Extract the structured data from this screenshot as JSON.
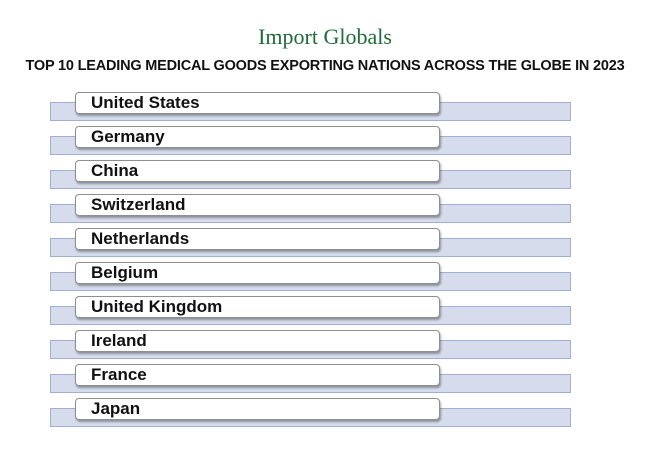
{
  "header": {
    "logo": "Import Globals",
    "title": "TOP 10 LEADING MEDICAL GOODS EXPORTING NATIONS ACROSS THE GLOBE IN 2023"
  },
  "items": [
    "United States",
    "Germany",
    "China",
    "Switzerland",
    "Netherlands",
    "Belgium",
    "United Kingdom",
    "Ireland",
    "France",
    "Japan"
  ]
}
